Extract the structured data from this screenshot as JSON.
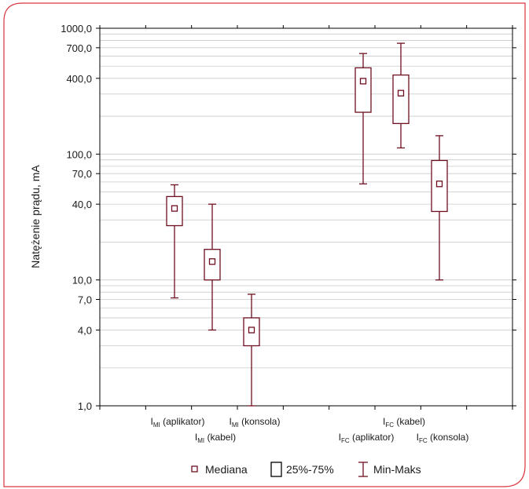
{
  "colors": {
    "frame": "#d9343f",
    "box": "#6e0f1f",
    "grid": "#c9c9c9",
    "axis": "#000000"
  },
  "chart_data": {
    "type": "box",
    "title": "",
    "ylabel": "Natężenie prądu, mA",
    "yscale": "log",
    "ylim": [
      1,
      1000
    ],
    "yticks": [
      "1,0",
      "4,0",
      "7,0",
      "10,0",
      "40,0",
      "70,0",
      "100,0",
      "400,0",
      "700,0",
      "1000,0"
    ],
    "ytick_values": [
      1,
      4,
      7,
      10,
      40,
      70,
      100,
      400,
      700,
      1000
    ],
    "grid": true,
    "categories": [
      {
        "main": "I",
        "sub": "MI",
        "rest": " (aplikator)",
        "row": 1
      },
      {
        "main": "I",
        "sub": "MI",
        "rest": " (kabel)",
        "row": 2
      },
      {
        "main": "I",
        "sub": "MI",
        "rest": " (konsola)",
        "row": 1
      },
      {
        "main": "I",
        "sub": "FC",
        "rest": " (aplikator)",
        "row": 2
      },
      {
        "main": "I",
        "sub": "FC",
        "rest": " (kabel)",
        "row": 1
      },
      {
        "main": "I",
        "sub": "FC",
        "rest": " (konsola)",
        "row": 2
      }
    ],
    "boxes": [
      {
        "median": 37,
        "q1": 27,
        "q3": 46,
        "min": 7.2,
        "max": 57
      },
      {
        "median": 14,
        "q1": 10,
        "q3": 17.5,
        "min": 4,
        "max": 40
      },
      {
        "median": 4,
        "q1": 3,
        "q3": 5,
        "min": 1,
        "max": 7.7
      },
      {
        "median": 380,
        "q1": 215,
        "q3": 485,
        "min": 58,
        "max": 630
      },
      {
        "median": 305,
        "q1": 175,
        "q3": 425,
        "min": 112,
        "max": 760
      },
      {
        "median": 58,
        "q1": 35,
        "q3": 89,
        "min": 10,
        "max": 140
      }
    ],
    "legend": {
      "placement": "bottom",
      "items": [
        {
          "type": "median",
          "label": "Mediana"
        },
        {
          "type": "box",
          "label": "25%-75%"
        },
        {
          "type": "whisker",
          "label": "Min-Maks"
        }
      ]
    }
  }
}
